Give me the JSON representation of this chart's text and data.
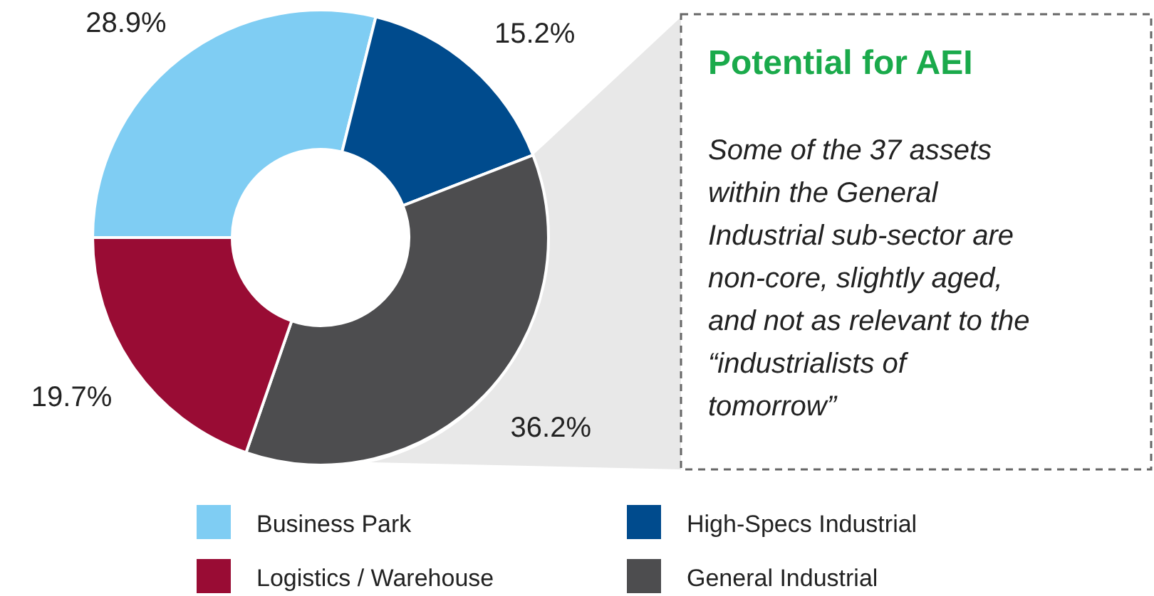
{
  "chart_data": {
    "type": "donut",
    "categories": [
      "Business Park",
      "High-Specs Industrial",
      "General Industrial",
      "Logistics / Warehouse"
    ],
    "values": [
      28.9,
      15.2,
      36.2,
      19.7
    ],
    "colors": [
      "#7fcdf3",
      "#004b8d",
      "#4d4d4f",
      "#990c34"
    ],
    "value_labels": [
      "28.9%",
      "15.2%",
      "36.2%",
      "19.7%"
    ],
    "legend": "bottom",
    "annotations": [
      "Potential for AEI",
      "Some of the 37 assets\nwithin the General\nIndustrial sub-sector are\nnon-core, slightly aged,\nand not as relevant to the\n“industrialists of\ntomorrow”"
    ]
  }
}
